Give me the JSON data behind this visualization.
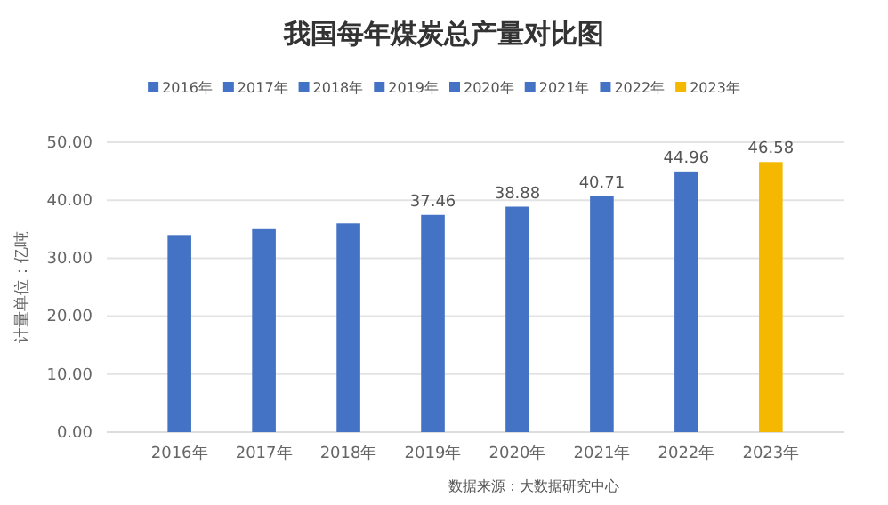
{
  "chart_data": {
    "type": "bar",
    "title": "我国每年煤炭总产量对比图",
    "ylabel": "计量单位：亿吨",
    "categories": [
      "2016年",
      "2017年",
      "2018年",
      "2019年",
      "2020年",
      "2021年",
      "2022年",
      "2023年"
    ],
    "stacked": true,
    "series": [
      {
        "name": "2016年",
        "color": "#4472c4",
        "values": [
          34,
          null,
          null,
          null,
          null,
          null,
          null,
          null
        ]
      },
      {
        "name": "2017年",
        "color": "#4472c4",
        "values": [
          null,
          35,
          null,
          null,
          null,
          null,
          null,
          null
        ]
      },
      {
        "name": "2018年",
        "color": "#4472c4",
        "values": [
          null,
          null,
          36,
          null,
          null,
          null,
          null,
          null
        ]
      },
      {
        "name": "2019年",
        "color": "#4472c4",
        "values": [
          null,
          null,
          null,
          37.46,
          null,
          null,
          null,
          null
        ],
        "value_labels": [
          null,
          null,
          null,
          "37.46",
          null,
          null,
          null,
          null
        ]
      },
      {
        "name": "2020年",
        "color": "#4472c4",
        "values": [
          null,
          null,
          null,
          null,
          38.88,
          null,
          null,
          null
        ],
        "value_labels": [
          null,
          null,
          null,
          null,
          "38.88",
          null,
          null,
          null
        ]
      },
      {
        "name": "2021年",
        "color": "#4472c4",
        "values": [
          null,
          null,
          null,
          null,
          null,
          40.71,
          null,
          null
        ],
        "value_labels": [
          null,
          null,
          null,
          null,
          null,
          "40.71",
          null,
          null
        ]
      },
      {
        "name": "2022年",
        "color": "#4472c4",
        "values": [
          null,
          null,
          null,
          null,
          null,
          null,
          44.96,
          null
        ],
        "value_labels": [
          null,
          null,
          null,
          null,
          null,
          null,
          "44.96",
          null
        ]
      },
      {
        "name": "2023年",
        "color": "#f5b800",
        "values": [
          null,
          null,
          null,
          null,
          null,
          null,
          null,
          46.58
        ],
        "value_labels": [
          null,
          null,
          null,
          null,
          null,
          null,
          null,
          "46.58"
        ]
      }
    ],
    "ylim": [
      0,
      50
    ],
    "yticks": [
      {
        "value": 0,
        "label": "0.00"
      },
      {
        "value": 10,
        "label": "10.00"
      },
      {
        "value": 20,
        "label": "20.00"
      },
      {
        "value": 30,
        "label": "30.00"
      },
      {
        "value": 40,
        "label": "40.00"
      },
      {
        "value": 50,
        "label": "50.00"
      }
    ],
    "grid": "y",
    "legend": "top",
    "annotations": [
      "数据来源：大数据研究中心"
    ]
  }
}
